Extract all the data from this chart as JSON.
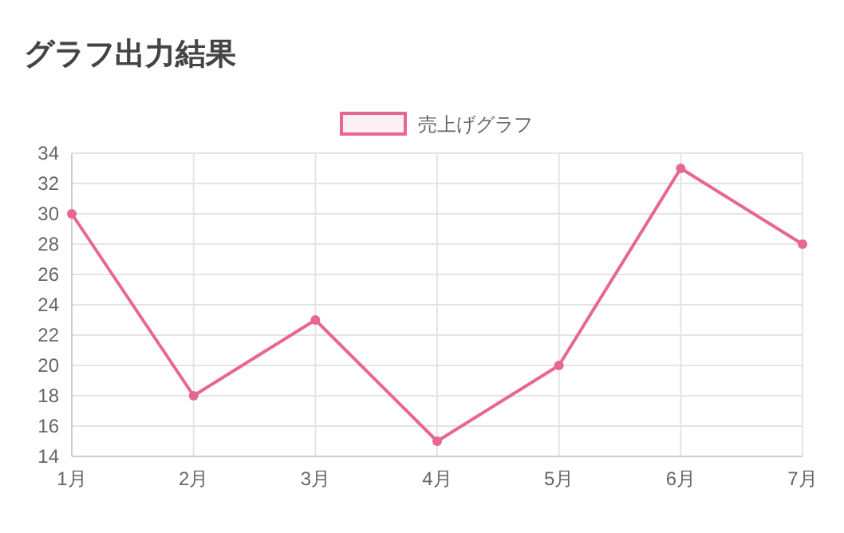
{
  "chart_data": {
    "type": "line",
    "title": "グラフ出力結果",
    "categories": [
      "1月",
      "2月",
      "3月",
      "4月",
      "5月",
      "6月",
      "7月"
    ],
    "series": [
      {
        "name": "売上げグラフ",
        "color": "#e8678f",
        "values": [
          30,
          18,
          23,
          15,
          20,
          33,
          28
        ]
      }
    ],
    "ylim": [
      14,
      34
    ],
    "yticks": [
      14,
      16,
      18,
      20,
      22,
      24,
      26,
      28,
      30,
      32,
      34
    ],
    "grid": true,
    "legend": "top",
    "marker": "circle",
    "line_style": "solid"
  }
}
